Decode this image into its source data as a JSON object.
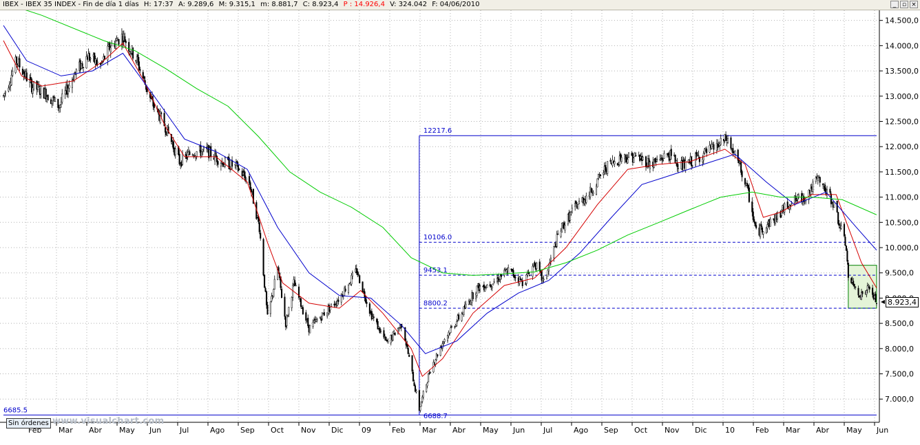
{
  "window": {
    "symbol": "IBEX",
    "name": "IBEX 35 INDEX",
    "period": "Fin de día 1 días",
    "h": "H: 17:37",
    "a": "A: 9.289,6",
    "m_max": "M: 9.315,1",
    "m_min": "m: 8.881,7",
    "c": "C: 8.923,4",
    "p": "P : 14.926,4",
    "v": "V: 324.042",
    "f": "F: 04/06/2010"
  },
  "status": {
    "orders_label": "Sin órdenes",
    "watermark": "www.visualchart.com",
    "last_value": "8.923,4"
  },
  "colors": {
    "price": "#000000",
    "ma_short": "#d40000",
    "ma_medium": "#0000cc",
    "ma_long": "#00cc00",
    "levels": "#0000cc",
    "zone_fill": "#e4f4d8",
    "zone_border": "#008000"
  },
  "chart_data": {
    "type": "candlestick",
    "x_labels": [
      "Feb",
      "Mar",
      "Abr",
      "May",
      "Jun",
      "Jul",
      "Ago",
      "Sep",
      "Oct",
      "Nov",
      "Dic",
      "09",
      "Feb",
      "Mar",
      "Abr",
      "May",
      "Jun",
      "Jul",
      "Ago",
      "Sep",
      "Oct",
      "Nov",
      "Dic",
      "10",
      "Feb",
      "Mar",
      "Abr",
      "May",
      "Jun"
    ],
    "x_range": [
      "2008-01-23",
      "2010-06-04"
    ],
    "y_ticks": [
      7000,
      7500,
      8000,
      8500,
      9000,
      9500,
      10000,
      10500,
      11000,
      11500,
      12000,
      12500,
      13000,
      13500,
      14000,
      14500
    ],
    "y_tick_labels": [
      "7.000,0",
      "7.500,0",
      "8.000,0",
      "8.500,0",
      "9.000,0",
      "9.500,0",
      "10.000,0",
      "10.500,0",
      "11.000,0",
      "11.500,0",
      "12.000,0",
      "12.500,0",
      "13.000,0",
      "13.500,0",
      "14.000,0",
      "14.500,0"
    ],
    "ylim": [
      6540,
      14700
    ],
    "price_path": [
      [
        "2008-01-23",
        13000
      ],
      [
        "2008-02-05",
        13700
      ],
      [
        "2008-02-20",
        13200
      ],
      [
        "2008-03-05",
        13050
      ],
      [
        "2008-03-18",
        12800
      ],
      [
        "2008-04-01",
        13400
      ],
      [
        "2008-04-15",
        13800
      ],
      [
        "2008-04-28",
        13600
      ],
      [
        "2008-05-08",
        14000
      ],
      [
        "2008-05-20",
        14200
      ],
      [
        "2008-06-03",
        13700
      ],
      [
        "2008-06-17",
        12900
      ],
      [
        "2008-07-01",
        12400
      ],
      [
        "2008-07-15",
        11700
      ],
      [
        "2008-07-28",
        11900
      ],
      [
        "2008-08-12",
        11900
      ],
      [
        "2008-08-26",
        11700
      ],
      [
        "2008-09-09",
        11600
      ],
      [
        "2008-09-22",
        11300
      ],
      [
        "2008-10-02",
        10400
      ],
      [
        "2008-10-10",
        8600
      ],
      [
        "2008-10-20",
        9600
      ],
      [
        "2008-10-28",
        8500
      ],
      [
        "2008-11-05",
        9300
      ],
      [
        "2008-11-20",
        8400
      ],
      [
        "2008-12-05",
        8700
      ],
      [
        "2008-12-20",
        9000
      ],
      [
        "2009-01-06",
        9550
      ],
      [
        "2009-01-20",
        8700
      ],
      [
        "2009-02-05",
        8100
      ],
      [
        "2009-02-20",
        8500
      ],
      [
        "2009-03-09",
        6800
      ],
      [
        "2009-03-20",
        7600
      ],
      [
        "2009-04-03",
        8200
      ],
      [
        "2009-04-20",
        8700
      ],
      [
        "2009-05-05",
        9200
      ],
      [
        "2009-05-20",
        9300
      ],
      [
        "2009-06-05",
        9550
      ],
      [
        "2009-06-20",
        9300
      ],
      [
        "2009-07-01",
        9700
      ],
      [
        "2009-07-10",
        9300
      ],
      [
        "2009-07-25",
        10300
      ],
      [
        "2009-08-10",
        10800
      ],
      [
        "2009-08-25",
        11100
      ],
      [
        "2009-09-10",
        11600
      ],
      [
        "2009-09-25",
        11800
      ],
      [
        "2009-10-10",
        11800
      ],
      [
        "2009-10-25",
        11650
      ],
      [
        "2009-11-10",
        11850
      ],
      [
        "2009-11-25",
        11600
      ],
      [
        "2009-12-10",
        11800
      ],
      [
        "2009-12-28",
        12000
      ],
      [
        "2010-01-07",
        12150
      ],
      [
        "2010-01-20",
        11600
      ],
      [
        "2010-01-29",
        11000
      ],
      [
        "2010-02-05",
        10300
      ],
      [
        "2010-02-12",
        10400
      ],
      [
        "2010-02-25",
        10600
      ],
      [
        "2010-03-10",
        10900
      ],
      [
        "2010-03-25",
        11000
      ],
      [
        "2010-04-07",
        11350
      ],
      [
        "2010-04-22",
        10900
      ],
      [
        "2010-05-05",
        10000
      ],
      [
        "2010-05-07",
        9400
      ],
      [
        "2010-05-10",
        9300
      ],
      [
        "2010-05-20",
        9050
      ],
      [
        "2010-05-27",
        9200
      ],
      [
        "2010-06-04",
        8923.4
      ]
    ],
    "moving_averages": [
      {
        "color_key": "ma_short",
        "points": [
          [
            "2008-01-23",
            14100
          ],
          [
            "2008-02-10",
            13400
          ],
          [
            "2008-03-01",
            13200
          ],
          [
            "2008-04-01",
            13300
          ],
          [
            "2008-05-01",
            13700
          ],
          [
            "2008-05-20",
            14050
          ],
          [
            "2008-06-10",
            13300
          ],
          [
            "2008-07-01",
            12400
          ],
          [
            "2008-07-20",
            11800
          ],
          [
            "2008-08-20",
            11800
          ],
          [
            "2008-09-20",
            11300
          ],
          [
            "2008-10-10",
            10100
          ],
          [
            "2008-10-25",
            9300
          ],
          [
            "2008-11-20",
            8900
          ],
          [
            "2008-12-20",
            8800
          ],
          [
            "2009-01-10",
            9150
          ],
          [
            "2009-02-01",
            8700
          ],
          [
            "2009-03-01",
            8000
          ],
          [
            "2009-03-12",
            7450
          ],
          [
            "2009-04-01",
            7800
          ],
          [
            "2009-05-01",
            8700
          ],
          [
            "2009-06-01",
            9250
          ],
          [
            "2009-07-01",
            9400
          ],
          [
            "2009-08-01",
            10000
          ],
          [
            "2009-09-01",
            10850
          ],
          [
            "2009-10-01",
            11550
          ],
          [
            "2009-11-01",
            11650
          ],
          [
            "2009-12-01",
            11700
          ],
          [
            "2010-01-05",
            11950
          ],
          [
            "2010-01-25",
            11650
          ],
          [
            "2010-02-12",
            10600
          ],
          [
            "2010-03-01",
            10700
          ],
          [
            "2010-04-01",
            11050
          ],
          [
            "2010-04-25",
            11050
          ],
          [
            "2010-05-20",
            9700
          ],
          [
            "2010-06-04",
            9200
          ]
        ]
      },
      {
        "color_key": "ma_medium",
        "points": [
          [
            "2008-01-23",
            14400
          ],
          [
            "2008-02-15",
            13700
          ],
          [
            "2008-03-20",
            13400
          ],
          [
            "2008-04-20",
            13500
          ],
          [
            "2008-05-20",
            13850
          ],
          [
            "2008-06-20",
            13000
          ],
          [
            "2008-07-20",
            12150
          ],
          [
            "2008-08-20",
            11900
          ],
          [
            "2008-09-20",
            11550
          ],
          [
            "2008-10-20",
            10400
          ],
          [
            "2008-11-20",
            9500
          ],
          [
            "2008-12-20",
            9050
          ],
          [
            "2009-01-20",
            9000
          ],
          [
            "2009-02-20",
            8450
          ],
          [
            "2009-03-15",
            7900
          ],
          [
            "2009-04-15",
            8150
          ],
          [
            "2009-05-15",
            8700
          ],
          [
            "2009-06-15",
            9100
          ],
          [
            "2009-07-15",
            9350
          ],
          [
            "2009-08-15",
            9900
          ],
          [
            "2009-09-15",
            10600
          ],
          [
            "2009-10-15",
            11250
          ],
          [
            "2009-11-15",
            11450
          ],
          [
            "2009-12-15",
            11650
          ],
          [
            "2010-01-15",
            11850
          ],
          [
            "2010-02-15",
            11300
          ],
          [
            "2010-03-15",
            10850
          ],
          [
            "2010-04-15",
            11100
          ],
          [
            "2010-05-15",
            10400
          ],
          [
            "2010-06-04",
            9950
          ]
        ]
      },
      {
        "color_key": "ma_long",
        "points": [
          [
            "2008-01-23",
            14850
          ],
          [
            "2008-03-01",
            14600
          ],
          [
            "2008-05-01",
            14100
          ],
          [
            "2008-06-01",
            13900
          ],
          [
            "2008-07-01",
            13550
          ],
          [
            "2008-08-01",
            13150
          ],
          [
            "2008-09-01",
            12800
          ],
          [
            "2008-10-01",
            12200
          ],
          [
            "2008-11-01",
            11500
          ],
          [
            "2008-12-01",
            11100
          ],
          [
            "2009-01-01",
            10800
          ],
          [
            "2009-02-01",
            10400
          ],
          [
            "2009-03-01",
            9800
          ],
          [
            "2009-04-01",
            9500
          ],
          [
            "2009-05-01",
            9450
          ],
          [
            "2009-06-01",
            9480
          ],
          [
            "2009-07-01",
            9520
          ],
          [
            "2009-08-01",
            9700
          ],
          [
            "2009-09-01",
            9950
          ],
          [
            "2009-10-01",
            10250
          ],
          [
            "2009-11-01",
            10500
          ],
          [
            "2009-12-01",
            10750
          ],
          [
            "2010-01-01",
            11000
          ],
          [
            "2010-02-01",
            11100
          ],
          [
            "2010-03-01",
            11000
          ],
          [
            "2010-04-01",
            11000
          ],
          [
            "2010-05-01",
            10950
          ],
          [
            "2010-06-04",
            10650
          ]
        ]
      }
    ],
    "levels": [
      {
        "label": "12217.6",
        "value": 12217.6,
        "from": "2009-03-09",
        "to": "2010-06-04",
        "style": "solid"
      },
      {
        "label": "10106.0",
        "value": 10106.0,
        "from": "2009-03-09",
        "to": "2010-06-04",
        "style": "dashed"
      },
      {
        "label": "9453.1",
        "value": 9453.1,
        "from": "2009-03-09",
        "to": "2010-06-04",
        "style": "dashed"
      },
      {
        "label": "8800.2",
        "value": 8800.2,
        "from": "2009-03-09",
        "to": "2010-06-04",
        "style": "dashed"
      },
      {
        "label": "6685.5",
        "value": 6685.5,
        "from": "2008-01-23",
        "to": "2010-06-04",
        "style": "solid"
      }
    ],
    "low_label": "6688.7",
    "low_value": 6688.7,
    "low_date": "2009-03-09",
    "zone": {
      "from": "2010-05-07",
      "to": "2010-06-04",
      "low": 8800.2,
      "high": 9650
    },
    "last_close": 8923.4
  }
}
